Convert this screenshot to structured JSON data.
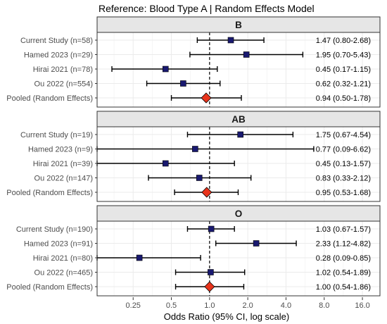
{
  "chart_data": {
    "type": "forest",
    "title": "Reference: Blood Type A | Random Effects Model",
    "xlabel": "Odds Ratio (95% CI, log scale)",
    "x_scale": "log",
    "xlim": [
      0.13,
      22
    ],
    "x_ticks": [
      0.25,
      0.5,
      1.0,
      2.0,
      4.0,
      8.0,
      16.0
    ],
    "x_tick_labels": [
      "0.25",
      "0.5",
      "1.0",
      "2.0",
      "4.0",
      "8.0",
      "16.0"
    ],
    "reference_line": 1.0,
    "grid": true,
    "colors": {
      "study_marker": "#191970",
      "pooled_marker": "#e8341c",
      "panel_strip": "#e6e6e6",
      "panel_border": "#333333",
      "gridline": "#ebebeb"
    },
    "panels": [
      {
        "name": "B",
        "rows": [
          {
            "label": "Current Study (n=58)",
            "or": 1.47,
            "lo": 0.8,
            "hi": 2.68,
            "ci_text": "1.47 (0.80-2.68)",
            "pooled": false
          },
          {
            "label": "Hamed 2023 (n=29)",
            "or": 1.95,
            "lo": 0.7,
            "hi": 5.43,
            "ci_text": "1.95 (0.70-5.43)",
            "pooled": false
          },
          {
            "label": "Hirai 2021 (n=78)",
            "or": 0.45,
            "lo": 0.17,
            "hi": 1.15,
            "ci_text": "0.45 (0.17-1.15)",
            "pooled": false
          },
          {
            "label": "Ou 2022 (n=554)",
            "or": 0.62,
            "lo": 0.32,
            "hi": 1.21,
            "ci_text": "0.62 (0.32-1.21)",
            "pooled": false
          },
          {
            "label": "Pooled (Random Effects)",
            "or": 0.94,
            "lo": 0.5,
            "hi": 1.78,
            "ci_text": "0.94 (0.50-1.78)",
            "pooled": true
          }
        ]
      },
      {
        "name": "AB",
        "rows": [
          {
            "label": "Current Study (n=19)",
            "or": 1.75,
            "lo": 0.67,
            "hi": 4.54,
            "ci_text": "1.75 (0.67-4.54)",
            "pooled": false
          },
          {
            "label": "Hamed 2023 (n=9)",
            "or": 0.77,
            "lo": 0.09,
            "hi": 6.62,
            "ci_text": "0.77 (0.09-6.62)",
            "pooled": false
          },
          {
            "label": "Hirai 2021 (n=39)",
            "or": 0.45,
            "lo": 0.13,
            "hi": 1.57,
            "ci_text": "0.45 (0.13-1.57)",
            "pooled": false
          },
          {
            "label": "Ou 2022 (n=147)",
            "or": 0.83,
            "lo": 0.33,
            "hi": 2.12,
            "ci_text": "0.83 (0.33-2.12)",
            "pooled": false
          },
          {
            "label": "Pooled (Random Effects)",
            "or": 0.95,
            "lo": 0.53,
            "hi": 1.68,
            "ci_text": "0.95 (0.53-1.68)",
            "pooled": true
          }
        ]
      },
      {
        "name": "O",
        "rows": [
          {
            "label": "Current Study (n=190)",
            "or": 1.03,
            "lo": 0.67,
            "hi": 1.57,
            "ci_text": "1.03 (0.67-1.57)",
            "pooled": false
          },
          {
            "label": "Hamed 2023 (n=91)",
            "or": 2.33,
            "lo": 1.12,
            "hi": 4.82,
            "ci_text": "2.33 (1.12-4.82)",
            "pooled": false
          },
          {
            "label": "Hirai 2021 (n=80)",
            "or": 0.28,
            "lo": 0.09,
            "hi": 0.85,
            "ci_text": "0.28 (0.09-0.85)",
            "pooled": false
          },
          {
            "label": "Ou 2022 (n=465)",
            "or": 1.02,
            "lo": 0.54,
            "hi": 1.89,
            "ci_text": "1.02 (0.54-1.89)",
            "pooled": false
          },
          {
            "label": "Pooled (Random Effects)",
            "or": 1.0,
            "lo": 0.54,
            "hi": 1.86,
            "ci_text": "1.00 (0.54-1.86)",
            "pooled": true
          }
        ]
      }
    ]
  }
}
